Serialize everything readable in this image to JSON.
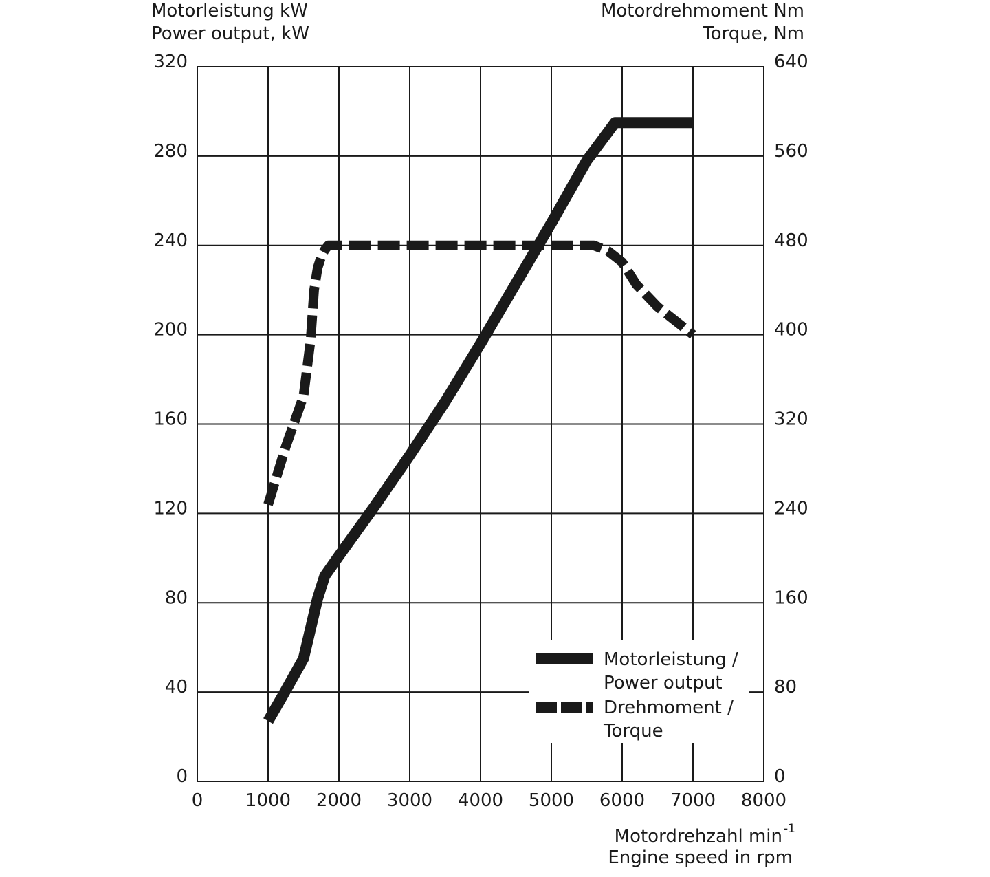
{
  "chart_data": {
    "type": "line",
    "left_axis_title": [
      "Motorleistung kW",
      "Power output, kW"
    ],
    "right_axis_title": [
      "Motordrehmoment Nm",
      "Torque, Nm"
    ],
    "x_axis_title": {
      "line1": "Motordrehzahl min",
      "line1_sup": "-1",
      "line2": "Engine speed in rpm"
    },
    "xlim": [
      0,
      8000
    ],
    "ylim_left": [
      0,
      320
    ],
    "ylim_right": [
      0,
      640
    ],
    "x_ticks": [
      "0",
      "1000",
      "2000",
      "3000",
      "4000",
      "5000",
      "6000",
      "7000",
      "8000"
    ],
    "y_ticks_left": [
      "0",
      "40",
      "80",
      "120",
      "160",
      "200",
      "240",
      "280",
      "320"
    ],
    "y_ticks_right": [
      "0",
      "80",
      "160",
      "240",
      "320",
      "400",
      "480",
      "560",
      "640"
    ],
    "grid": true,
    "legend": {
      "position": "bottom-right"
    },
    "series": [
      {
        "name": "Motorleistung / Power output",
        "label_lines": [
          "Motorleistung /",
          "Power output"
        ],
        "axis": "left",
        "style": "solid",
        "x": [
          1000,
          1200,
          1500,
          1700,
          1800,
          2000,
          2500,
          3000,
          3500,
          4000,
          4500,
          5000,
          5500,
          5900,
          6000,
          7000
        ],
        "y": [
          27,
          38,
          55,
          82,
          92,
          101,
          123,
          146,
          170,
          196,
          223,
          250,
          278,
          295,
          295,
          295
        ]
      },
      {
        "name": "Drehmoment / Torque",
        "label_lines": [
          "Drehmoment /",
          "Torque"
        ],
        "axis": "right",
        "style": "dashed",
        "x": [
          1000,
          1250,
          1500,
          1600,
          1650,
          1700,
          1750,
          1800,
          1850,
          2000,
          3000,
          4000,
          5000,
          5600,
          5800,
          6000,
          6200,
          6500,
          7000
        ],
        "y": [
          248,
          300,
          345,
          395,
          440,
          460,
          470,
          476,
          480,
          480,
          480,
          480,
          480,
          480,
          475,
          465,
          445,
          425,
          400
        ]
      }
    ],
    "colors": {
      "line": "#1a1a1a",
      "grid": "#1a1a1a",
      "background": "#ffffff"
    }
  }
}
